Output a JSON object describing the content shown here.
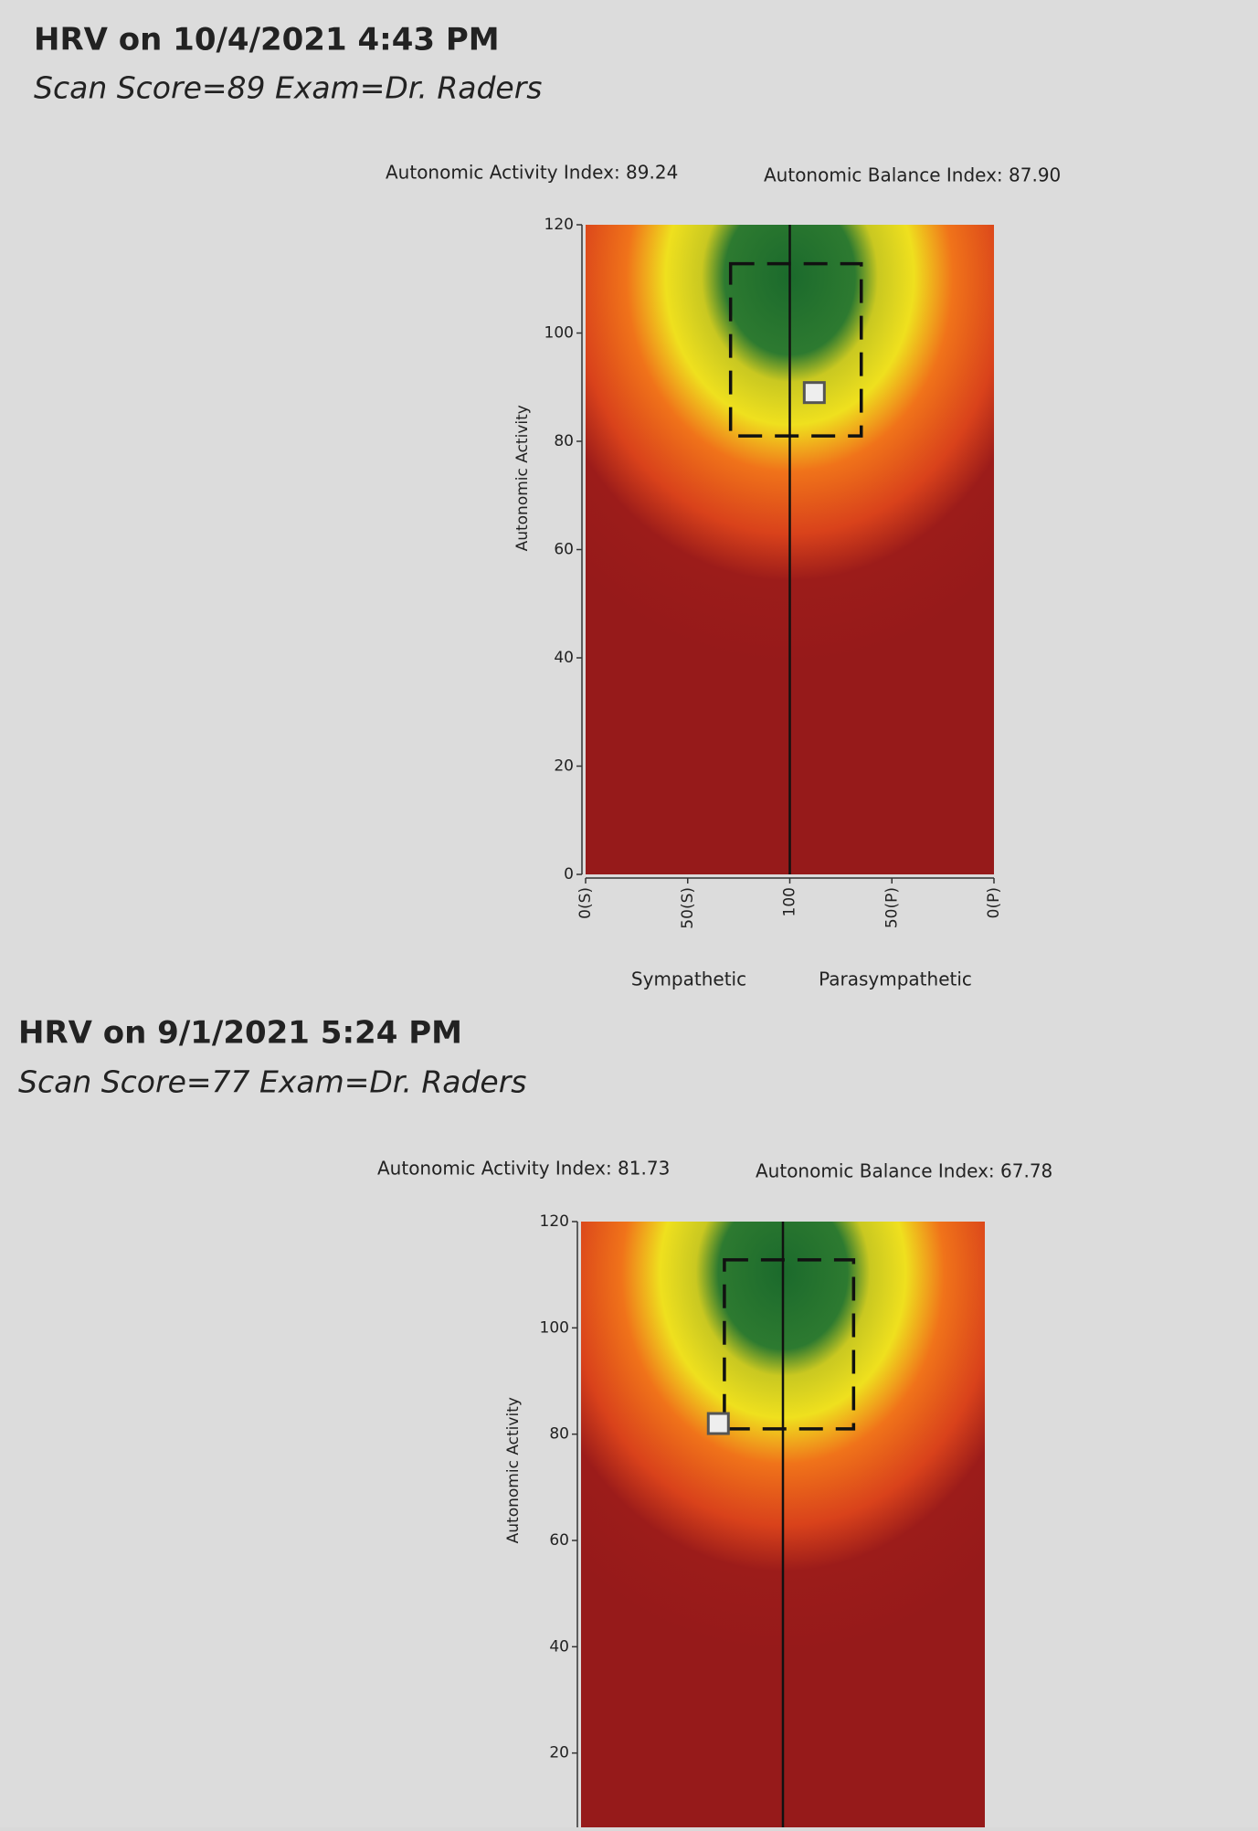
{
  "chart_data": [
    {
      "type": "scatter",
      "title": "HRV on 10/4/2021 4:43 PM",
      "subtitle": "Scan Score=89 Exam=Dr. Raders",
      "annotations": [
        "Autonomic Activity Index: 89.24",
        "Autonomic Balance Index: 87.90"
      ],
      "ylabel": "Autonomic Activity",
      "x_side_labels": [
        "Sympathetic",
        "Parasympathetic"
      ],
      "x": [
        112
      ],
      "values": [
        89
      ],
      "color": "#eeeeee",
      "xlim": [
        0,
        200
      ],
      "xticks": [
        {
          "value": 0,
          "label": "0(S)"
        },
        {
          "value": 50,
          "label": "50(S)"
        },
        100,
        {
          "value": 150,
          "label": "50(P)"
        },
        {
          "value": 200,
          "label": "0(P)"
        }
      ],
      "ylim": [
        0,
        120
      ],
      "yticks": [
        0,
        20,
        40,
        60,
        80,
        100,
        120
      ]
    },
    {
      "type": "scatter",
      "title": "HRV on 9/1/2021 5:24 PM",
      "subtitle": "Scan Score=77 Exam=Dr. Raders",
      "annotations": [
        "Autonomic Activity Index: 81.73",
        "Autonomic Balance Index: 67.78"
      ],
      "ylabel": "Autonomic Activity",
      "x": [
        68
      ],
      "values": [
        82
      ],
      "color": "#eeeeee",
      "xlim": [
        0,
        200
      ],
      "ylim": [
        0,
        120
      ],
      "yticks": [
        20,
        40,
        60,
        80,
        100,
        120
      ]
    }
  ]
}
